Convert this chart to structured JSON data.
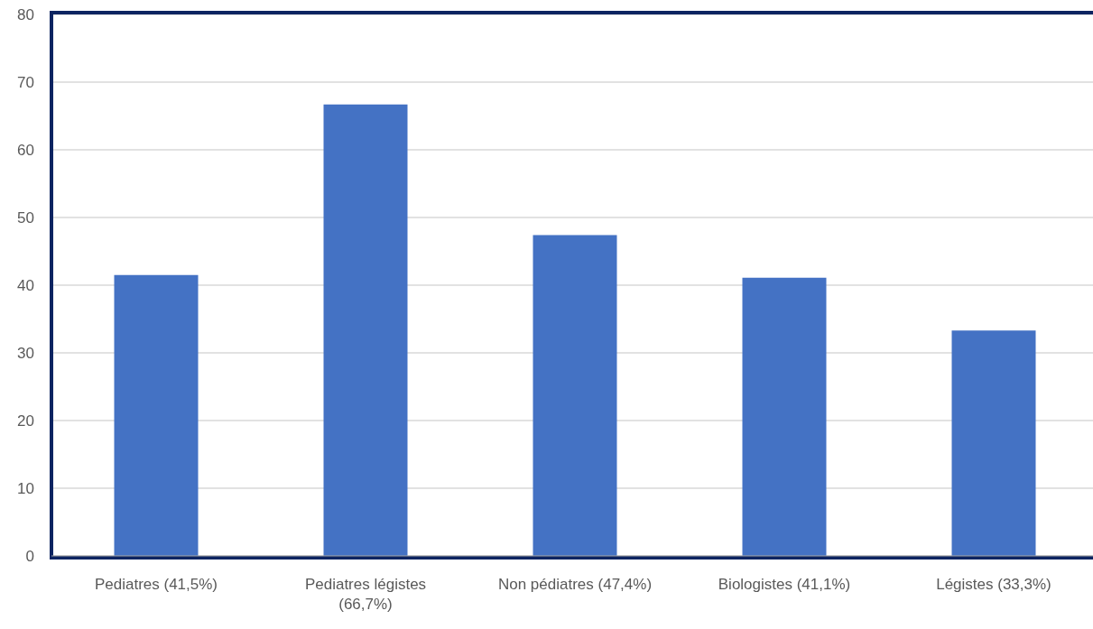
{
  "chart_data": {
    "type": "bar",
    "categories": [
      "Pediatres (41,5%)",
      "Pediatres légistes (66,7%)",
      "Non pédiatres (47,4%)",
      "Biologistes (41,1%)",
      "Légistes (33,3%)"
    ],
    "values": [
      41.5,
      66.7,
      47.4,
      41.1,
      33.3
    ],
    "color": "#4472c4",
    "ylim": [
      0,
      80
    ],
    "yticks": [
      0,
      10,
      20,
      30,
      40,
      50,
      60,
      70,
      80
    ],
    "grid": "y"
  }
}
